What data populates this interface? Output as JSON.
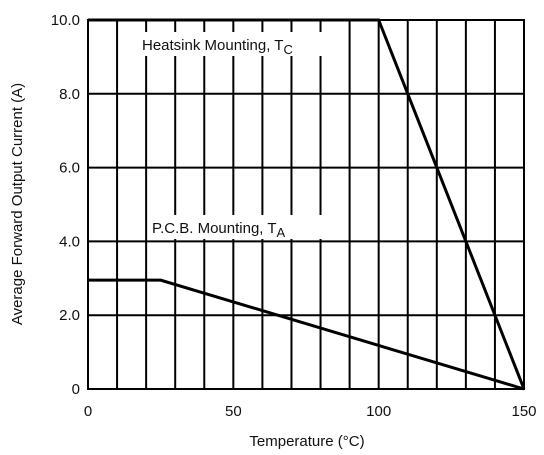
{
  "chart_data": {
    "type": "line",
    "xlabel": "Temperature (°C)",
    "ylabel": "Average Forward Output Current (A)",
    "xlim": [
      0,
      150
    ],
    "ylim": [
      0,
      10
    ],
    "x_ticks": [
      0,
      50,
      100,
      150
    ],
    "x_tick_labels": [
      "0",
      "50",
      "100",
      "150"
    ],
    "x_grid_step": 10,
    "y_ticks": [
      0,
      2,
      4,
      6,
      8,
      10
    ],
    "y_tick_labels": [
      "0",
      "2.0",
      "4.0",
      "6.0",
      "8.0",
      "10.0"
    ],
    "grid": true,
    "series": [
      {
        "name_main": "Heatsink Mounting, T",
        "name_sub": "C",
        "x": [
          0,
          100,
          150
        ],
        "y": [
          10.0,
          10.0,
          0
        ]
      },
      {
        "name_main": "P.C.B. Mounting, T",
        "name_sub": "A",
        "x": [
          0,
          25,
          150
        ],
        "y": [
          2.95,
          2.95,
          0
        ]
      }
    ]
  }
}
